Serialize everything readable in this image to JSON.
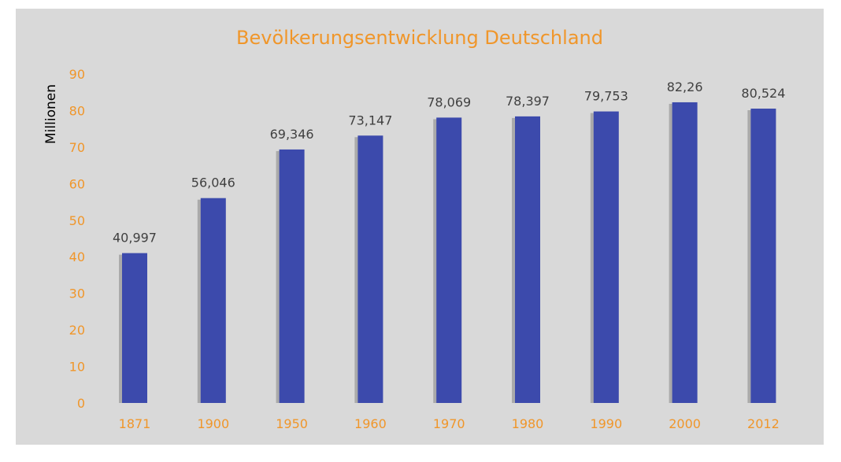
{
  "chart_data": {
    "type": "bar",
    "title": "Bevölkerungsentwicklung Deutschland",
    "xlabel": "",
    "ylabel": "Millionen",
    "ylim": [
      0,
      90
    ],
    "yticks": [
      0,
      10,
      20,
      30,
      40,
      50,
      60,
      70,
      80,
      90
    ],
    "categories": [
      "1871",
      "1900",
      "1950",
      "1960",
      "1970",
      "1980",
      "1990",
      "2000",
      "2012"
    ],
    "values": [
      40.997,
      56.046,
      69.346,
      73.147,
      78.069,
      78.397,
      79.753,
      82.26,
      80.524
    ],
    "data_labels": [
      "40,997",
      "56,046",
      "69,346",
      "73,147",
      "78,069",
      "78,397",
      "79,753",
      "82,26",
      "80,524"
    ],
    "grid": false,
    "legend": "none",
    "colors": {
      "bar": "#3c4aac",
      "accent": "#f0962a",
      "background": "#d9d9d9",
      "label": "#404040"
    }
  }
}
